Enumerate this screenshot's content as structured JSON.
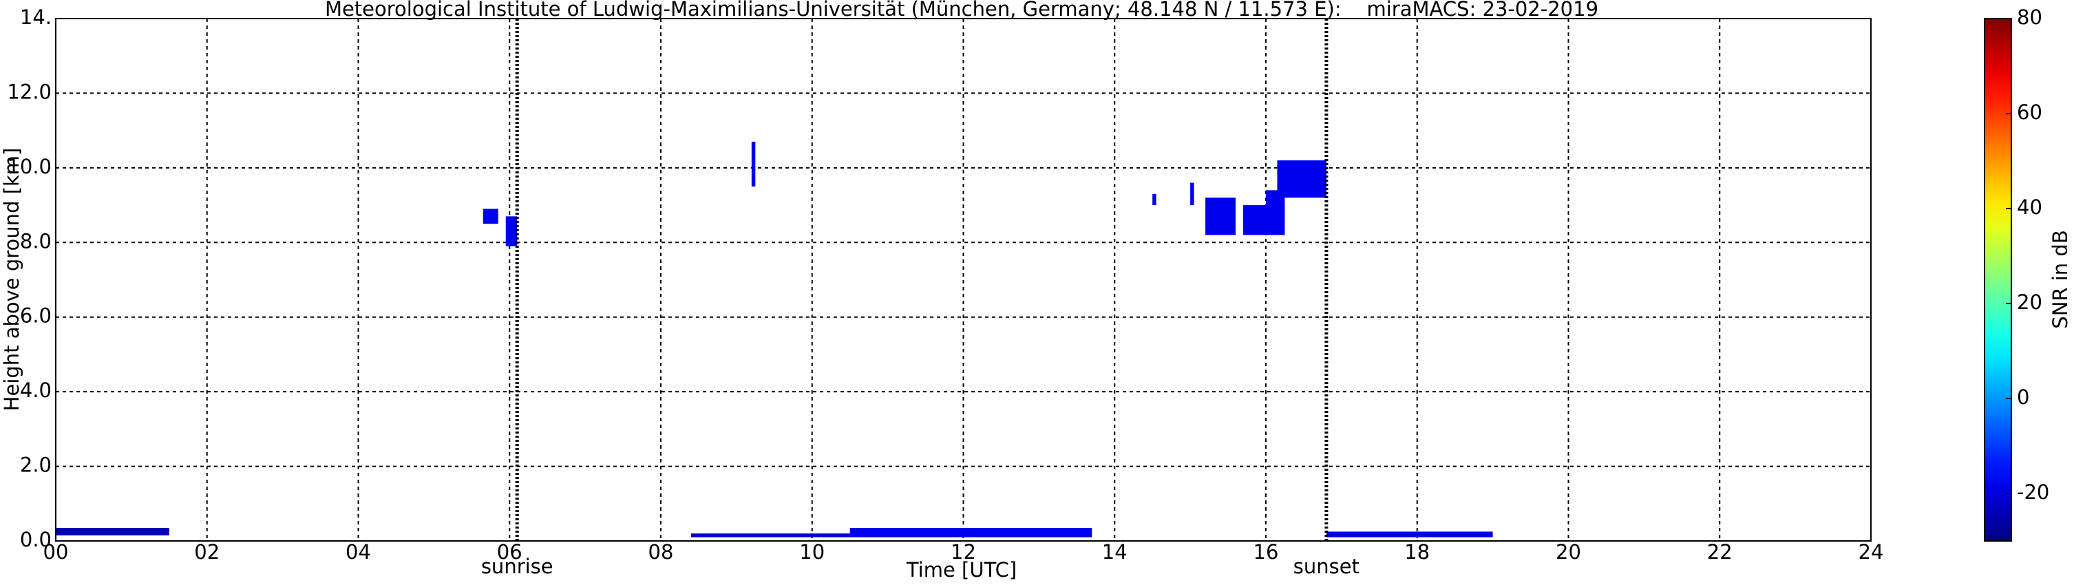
{
  "chart_data": {
    "type": "time-height",
    "title": "Meteorological Institute of Ludwig-Maximilians-Universität (München, Germany; 48.148 N / 11.573 E):    miraMACS: 23-02-2019",
    "x_label": "Time [UTC]",
    "y_label": "Height above ground [km]",
    "xlim": [
      0,
      24
    ],
    "xticks": [
      {
        "value": 0,
        "label": "00"
      },
      {
        "value": 2,
        "label": "02"
      },
      {
        "value": 4,
        "label": "04"
      },
      {
        "value": 6,
        "label": "06"
      },
      {
        "value": 8,
        "label": "08"
      },
      {
        "value": 10,
        "label": "10"
      },
      {
        "value": 12,
        "label": "12"
      },
      {
        "value": 14,
        "label": "14"
      },
      {
        "value": 16,
        "label": "16"
      },
      {
        "value": 18,
        "label": "18"
      },
      {
        "value": 20,
        "label": "20"
      },
      {
        "value": 22,
        "label": "22"
      },
      {
        "value": 24,
        "label": "24"
      }
    ],
    "ylim": [
      0,
      14
    ],
    "yticks": [
      {
        "value": 0,
        "label": "0.0"
      },
      {
        "value": 2,
        "label": "2.0"
      },
      {
        "value": 4,
        "label": "4.0"
      },
      {
        "value": 6,
        "label": "6.0"
      },
      {
        "value": 8,
        "label": "8.0"
      },
      {
        "value": 10,
        "label": "10.0"
      },
      {
        "value": 12,
        "label": "12.0"
      },
      {
        "value": 14,
        "label": "14."
      }
    ],
    "grid": true,
    "colorbar": {
      "label": "SNR in dB",
      "clim": [
        -30,
        80
      ],
      "ticks": [
        -20,
        0,
        20,
        40,
        60,
        80
      ],
      "colormap": "jet"
    },
    "sun_events": [
      {
        "label": "sunrise",
        "time": 6.1
      },
      {
        "label": "sunset",
        "time": 16.8
      }
    ],
    "echoes": [
      {
        "t": [
          5.65,
          5.85
        ],
        "h": [
          8.5,
          8.9
        ],
        "snr": -18
      },
      {
        "t": [
          5.95,
          6.1
        ],
        "h": [
          7.9,
          8.7
        ],
        "snr": -18
      },
      {
        "t": [
          9.2,
          9.25
        ],
        "h": [
          9.5,
          10.7
        ],
        "snr": -18
      },
      {
        "t": [
          14.5,
          14.55
        ],
        "h": [
          9.0,
          9.3
        ],
        "snr": -18
      },
      {
        "t": [
          15.0,
          15.05
        ],
        "h": [
          9.0,
          9.6
        ],
        "snr": -18
      },
      {
        "t": [
          15.2,
          15.6
        ],
        "h": [
          8.2,
          9.2
        ],
        "snr": -18
      },
      {
        "t": [
          15.7,
          16.0
        ],
        "h": [
          8.2,
          9.0
        ],
        "snr": -18
      },
      {
        "t": [
          16.0,
          16.25
        ],
        "h": [
          8.2,
          9.4
        ],
        "snr": -18
      },
      {
        "t": [
          16.15,
          16.8
        ],
        "h": [
          9.2,
          10.2
        ],
        "snr": -18
      },
      {
        "t": [
          10.5,
          13.7
        ],
        "h": [
          0.1,
          0.35
        ],
        "snr": -18
      },
      {
        "t": [
          8.4,
          10.5
        ],
        "h": [
          0.1,
          0.2
        ],
        "snr": -22
      },
      {
        "t": [
          16.8,
          19.0
        ],
        "h": [
          0.1,
          0.25
        ],
        "snr": -18
      },
      {
        "t": [
          0.0,
          1.5
        ],
        "h": [
          0.15,
          0.35
        ],
        "snr": -24
      }
    ]
  }
}
